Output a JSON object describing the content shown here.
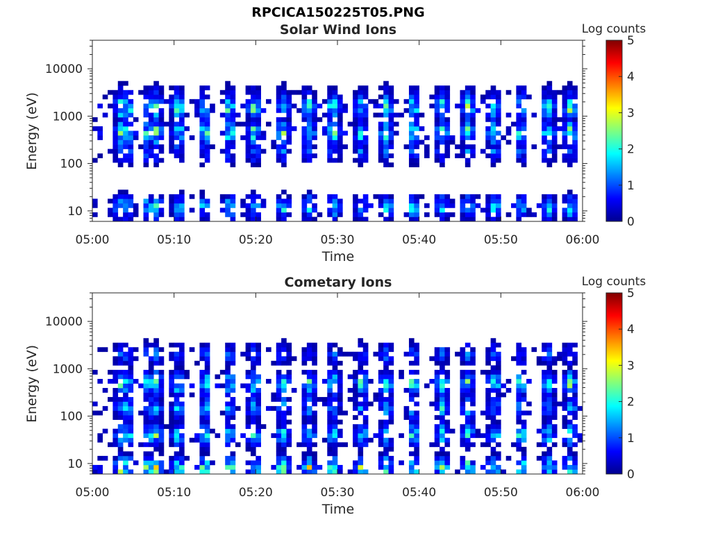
{
  "figure": {
    "filename_title": "RPCICA150225T05.PNG"
  },
  "panels": [
    {
      "title": "Solar Wind Ions",
      "xlabel": "Time",
      "ylabel": "Energy (eV)",
      "colorbar_label": "Log counts"
    },
    {
      "title": "Cometary Ions",
      "xlabel": "Time",
      "ylabel": "Energy (eV)",
      "colorbar_label": "Log counts"
    }
  ],
  "chart_data": [
    {
      "type": "heatmap",
      "title": "Solar Wind Ions",
      "xlabel": "Time",
      "ylabel": "Energy (eV)",
      "x_ticks": [
        "05:00",
        "05:10",
        "05:20",
        "05:30",
        "05:40",
        "05:50",
        "06:00"
      ],
      "xlim_minutes": [
        0,
        60
      ],
      "y_scale": "log",
      "y_ticks": [
        "10",
        "100",
        "1000",
        "10000"
      ],
      "ylim": [
        6,
        40000
      ],
      "colorbar": {
        "label": "Log counts",
        "ticks": [
          "0",
          "1",
          "2",
          "3",
          "4",
          "5"
        ],
        "range": [
          0,
          5
        ],
        "colormap": "jet"
      },
      "bursts_minutes": [
        3.5,
        4.3,
        6.8,
        7.8,
        10.5,
        13.8,
        16.8,
        19.8,
        23.3,
        26.5,
        29.5,
        33.0,
        36.0,
        39.3,
        42.8,
        46.0,
        49.2,
        52.5,
        55.8,
        58.5
      ],
      "bands_eV": [
        {
          "center": 12,
          "max_log_counts": 2.2
        },
        {
          "center": 180,
          "max_log_counts": 1.3
        },
        {
          "center": 450,
          "max_log_counts": 2.6
        },
        {
          "center": 1500,
          "max_log_counts": 2.6
        },
        {
          "center": 2500,
          "max_log_counts": 1.0
        }
      ],
      "grid": false
    },
    {
      "type": "heatmap",
      "title": "Cometary Ions",
      "xlabel": "Time",
      "ylabel": "Energy (eV)",
      "x_ticks": [
        "05:00",
        "05:10",
        "05:20",
        "05:30",
        "05:40",
        "05:50",
        "06:00"
      ],
      "xlim_minutes": [
        0,
        60
      ],
      "y_scale": "log",
      "y_ticks": [
        "10",
        "100",
        "1000",
        "10000"
      ],
      "ylim": [
        6,
        40000
      ],
      "colorbar": {
        "label": "Log counts",
        "ticks": [
          "0",
          "1",
          "2",
          "3",
          "4",
          "5"
        ],
        "range": [
          0,
          5
        ],
        "colormap": "jet"
      },
      "bursts_minutes": [
        3.5,
        4.3,
        6.8,
        7.8,
        10.5,
        13.8,
        16.8,
        19.8,
        23.3,
        26.5,
        29.5,
        33.0,
        36.0,
        39.3,
        42.8,
        46.0,
        49.2,
        52.5,
        55.8,
        58.5
      ],
      "bands_eV": [
        {
          "center": 8,
          "max_log_counts": 2.8
        },
        {
          "center": 40,
          "max_log_counts": 2.2
        },
        {
          "center": 150,
          "max_log_counts": 1.8
        },
        {
          "center": 500,
          "max_log_counts": 2.5
        },
        {
          "center": 2000,
          "max_log_counts": 1.2
        }
      ],
      "grid": false
    }
  ]
}
